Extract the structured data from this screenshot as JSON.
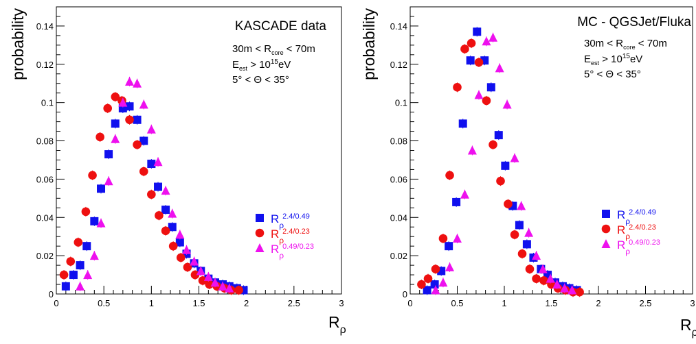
{
  "colors": {
    "blue": "#1010ee",
    "red": "#ee1010",
    "magenta": "#ee10ee",
    "axis": "#000000"
  },
  "chart_data": [
    {
      "type": "scatter",
      "title": "KASCADE data",
      "xlabel_main": "R",
      "xlabel_sub": "ρ",
      "ylabel": "probability",
      "xlim": [
        0,
        3
      ],
      "ylim": [
        0,
        0.15
      ],
      "x_ticks": [
        "0",
        "0.5",
        "1",
        "1.5",
        "2",
        "2.5",
        "3"
      ],
      "y_ticks": [
        "0",
        "0.02",
        "0.04",
        "0.06",
        "0.08",
        "0.1",
        "0.12",
        "0.14"
      ],
      "annotations": {
        "line1_a": "30m < R",
        "line1_sub": "core",
        "line1_b": " < 70m",
        "line2_a": "E",
        "line2_sub": "est",
        "line2_b": " > 10",
        "line2_sup": "15",
        "line2_c": "eV",
        "line3": "5° < Θ < 35°"
      },
      "legend_position": "right",
      "series": [
        {
          "name_main": "R",
          "name_sub": "ρ",
          "name_sup": "2.4/0.49",
          "marker": "square",
          "color": "#1010ee",
          "x": [
            0.1,
            0.18,
            0.25,
            0.32,
            0.4,
            0.47,
            0.55,
            0.62,
            0.7,
            0.77,
            0.85,
            0.92,
            1.0,
            1.07,
            1.15,
            1.22,
            1.3,
            1.37,
            1.45,
            1.52,
            1.6,
            1.67,
            1.75,
            1.82,
            1.9,
            1.97
          ],
          "y": [
            0.004,
            0.01,
            0.015,
            0.025,
            0.038,
            0.055,
            0.073,
            0.089,
            0.097,
            0.098,
            0.091,
            0.08,
            0.068,
            0.056,
            0.044,
            0.035,
            0.027,
            0.021,
            0.016,
            0.012,
            0.008,
            0.006,
            0.005,
            0.004,
            0.003,
            0.002
          ]
        },
        {
          "name_main": "R",
          "name_sub": "ρ",
          "name_sup": "2.4/0.23",
          "marker": "circle",
          "color": "#ee1010",
          "x": [
            0.08,
            0.15,
            0.23,
            0.31,
            0.38,
            0.46,
            0.54,
            0.62,
            0.69,
            0.77,
            0.85,
            0.92,
            1.0,
            1.08,
            1.15,
            1.23,
            1.31,
            1.38,
            1.46,
            1.54,
            1.61,
            1.69,
            1.77,
            1.84,
            1.92
          ],
          "y": [
            0.01,
            0.017,
            0.027,
            0.043,
            0.062,
            0.082,
            0.097,
            0.103,
            0.101,
            0.091,
            0.078,
            0.064,
            0.052,
            0.041,
            0.033,
            0.025,
            0.019,
            0.014,
            0.01,
            0.007,
            0.005,
            0.004,
            0.003,
            0.002,
            0.002
          ]
        },
        {
          "name_main": "R",
          "name_sub": "ρ",
          "name_sup": "0.49/0.23",
          "marker": "triangle",
          "color": "#ee10ee",
          "x": [
            0.25,
            0.33,
            0.4,
            0.47,
            0.55,
            0.62,
            0.7,
            0.77,
            0.85,
            0.92,
            1.0,
            1.07,
            1.15,
            1.22,
            1.3,
            1.37,
            1.45,
            1.52,
            1.6,
            1.67,
            1.75,
            1.82
          ],
          "y": [
            0.004,
            0.01,
            0.02,
            0.037,
            0.059,
            0.081,
            0.1,
            0.111,
            0.11,
            0.099,
            0.086,
            0.069,
            0.054,
            0.042,
            0.031,
            0.023,
            0.017,
            0.012,
            0.009,
            0.006,
            0.004,
            0.003
          ]
        }
      ]
    },
    {
      "type": "scatter",
      "title": "MC - QGSJet/Fluka",
      "xlabel_main": "R",
      "xlabel_sub": "ρ",
      "ylabel": "probability",
      "xlim": [
        0,
        3
      ],
      "ylim": [
        0,
        0.15
      ],
      "x_ticks": [
        "0",
        "0.5",
        "1",
        "1.5",
        "2",
        "2.5",
        "3"
      ],
      "y_ticks": [
        "0",
        "0.02",
        "0.04",
        "0.06",
        "0.08",
        "0.1",
        "0.12",
        "0.14"
      ],
      "annotations": {
        "line1_a": "30m < R",
        "line1_sub": "core",
        "line1_b": " < 70m",
        "line2_a": "E",
        "line2_sub": "est",
        "line2_b": " > 10",
        "line2_sup": "15",
        "line2_c": "eV",
        "line3": "5° < Θ < 35°"
      },
      "legend_position": "right",
      "series": [
        {
          "name_main": "R",
          "name_sub": "ρ",
          "name_sup": "2.4/0.49",
          "marker": "square",
          "color": "#1010ee",
          "x": [
            0.18,
            0.26,
            0.33,
            0.41,
            0.49,
            0.56,
            0.64,
            0.71,
            0.79,
            0.86,
            0.94,
            1.01,
            1.09,
            1.16,
            1.24,
            1.31,
            1.39,
            1.46,
            1.54,
            1.62,
            1.69,
            1.77
          ],
          "y": [
            0.002,
            0.005,
            0.012,
            0.025,
            0.048,
            0.089,
            0.122,
            0.137,
            0.122,
            0.108,
            0.083,
            0.067,
            0.046,
            0.036,
            0.026,
            0.019,
            0.013,
            0.01,
            0.006,
            0.004,
            0.003,
            0.002
          ]
        },
        {
          "name_main": "R",
          "name_sub": "ρ",
          "name_sup": "2.4/0.23",
          "marker": "circle",
          "color": "#ee1010",
          "x": [
            0.12,
            0.19,
            0.27,
            0.35,
            0.42,
            0.5,
            0.58,
            0.65,
            0.73,
            0.81,
            0.88,
            0.96,
            1.04,
            1.11,
            1.19,
            1.27,
            1.34,
            1.42,
            1.5,
            1.57,
            1.65,
            1.73,
            1.8
          ],
          "y": [
            0.005,
            0.008,
            0.013,
            0.029,
            0.062,
            0.108,
            0.128,
            0.131,
            0.121,
            0.101,
            0.078,
            0.059,
            0.047,
            0.031,
            0.021,
            0.013,
            0.008,
            0.007,
            0.005,
            0.003,
            0.002,
            0.001,
            0.001
          ]
        },
        {
          "name_main": "R",
          "name_sub": "ρ",
          "name_sup": "0.49/0.23",
          "marker": "triangle",
          "color": "#ee10ee",
          "x": [
            0.27,
            0.35,
            0.42,
            0.5,
            0.58,
            0.66,
            0.73,
            0.81,
            0.88,
            0.95,
            1.03,
            1.11,
            1.18,
            1.26,
            1.34,
            1.41,
            1.49,
            1.56,
            1.64,
            1.72
          ],
          "y": [
            0.002,
            0.006,
            0.014,
            0.029,
            0.052,
            0.075,
            0.104,
            0.132,
            0.134,
            0.118,
            0.099,
            0.071,
            0.046,
            0.032,
            0.02,
            0.013,
            0.008,
            0.005,
            0.003,
            0.002
          ]
        }
      ]
    }
  ]
}
